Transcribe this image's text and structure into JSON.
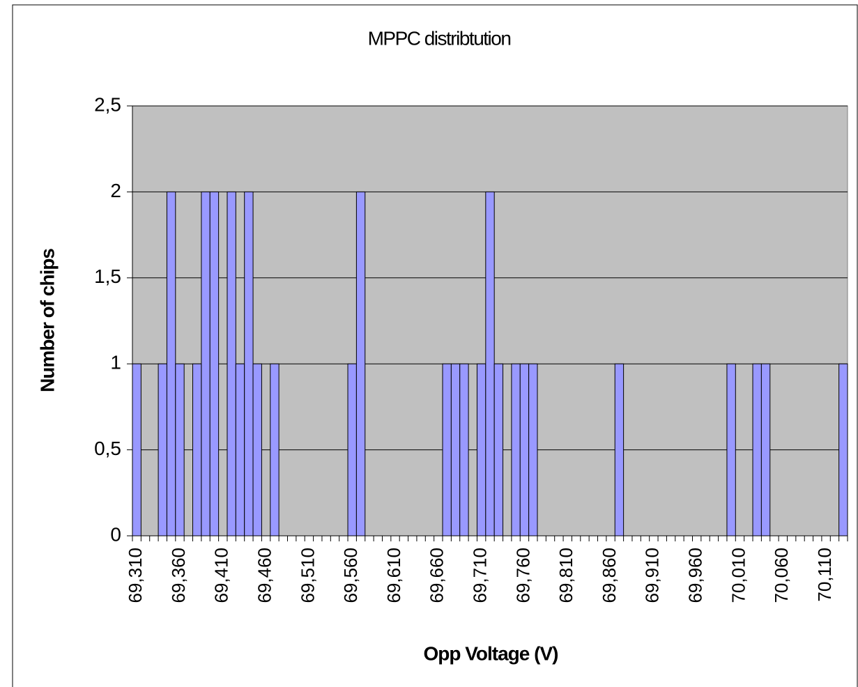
{
  "chart_data": {
    "type": "bar",
    "title": "MPPC distribtution",
    "xlabel": "Opp Voltage (V)",
    "ylabel": "Number of chips",
    "categories": [
      "69,310",
      null,
      null,
      null,
      null,
      "69,360",
      null,
      null,
      null,
      null,
      "69,410",
      null,
      null,
      null,
      null,
      "69,460",
      null,
      null,
      null,
      null,
      "69,510",
      null,
      null,
      null,
      null,
      "69,560",
      null,
      null,
      null,
      null,
      "69,610",
      null,
      null,
      null,
      null,
      "69,660",
      null,
      null,
      null,
      null,
      "69,710",
      null,
      null,
      null,
      null,
      "69,760",
      null,
      null,
      null,
      null,
      "69,810",
      null,
      null,
      null,
      null,
      "69,860",
      null,
      null,
      null,
      null,
      "69,910",
      null,
      null,
      null,
      null,
      "69,960",
      null,
      null,
      null,
      null,
      "70,010",
      null,
      null,
      null,
      null,
      "70,060",
      null,
      null,
      null,
      null,
      "70,110",
      null,
      null
    ],
    "values": [
      1,
      0,
      0,
      1,
      2,
      1,
      0,
      1,
      2,
      2,
      0,
      2,
      1,
      2,
      1,
      0,
      1,
      0,
      0,
      0,
      0,
      0,
      0,
      0,
      0,
      1,
      2,
      0,
      0,
      0,
      0,
      0,
      0,
      0,
      0,
      0,
      1,
      1,
      1,
      0,
      1,
      2,
      1,
      0,
      1,
      1,
      1,
      0,
      0,
      0,
      0,
      0,
      0,
      0,
      0,
      0,
      1,
      0,
      0,
      0,
      0,
      0,
      0,
      0,
      0,
      0,
      0,
      0,
      0,
      1,
      0,
      0,
      1,
      1,
      0,
      0,
      0,
      0,
      0,
      0,
      0,
      0,
      1
    ],
    "color": "#9999ff",
    "plot_background": "#c0c0c0",
    "ylim": [
      0,
      2.5
    ],
    "yticks": [
      0,
      {
        "value": 0.5,
        "label": "0,5"
      },
      1,
      {
        "value": 1.5,
        "label": "1,5"
      },
      2,
      {
        "value": 2.5,
        "label": "2,5"
      }
    ],
    "grid": true
  }
}
